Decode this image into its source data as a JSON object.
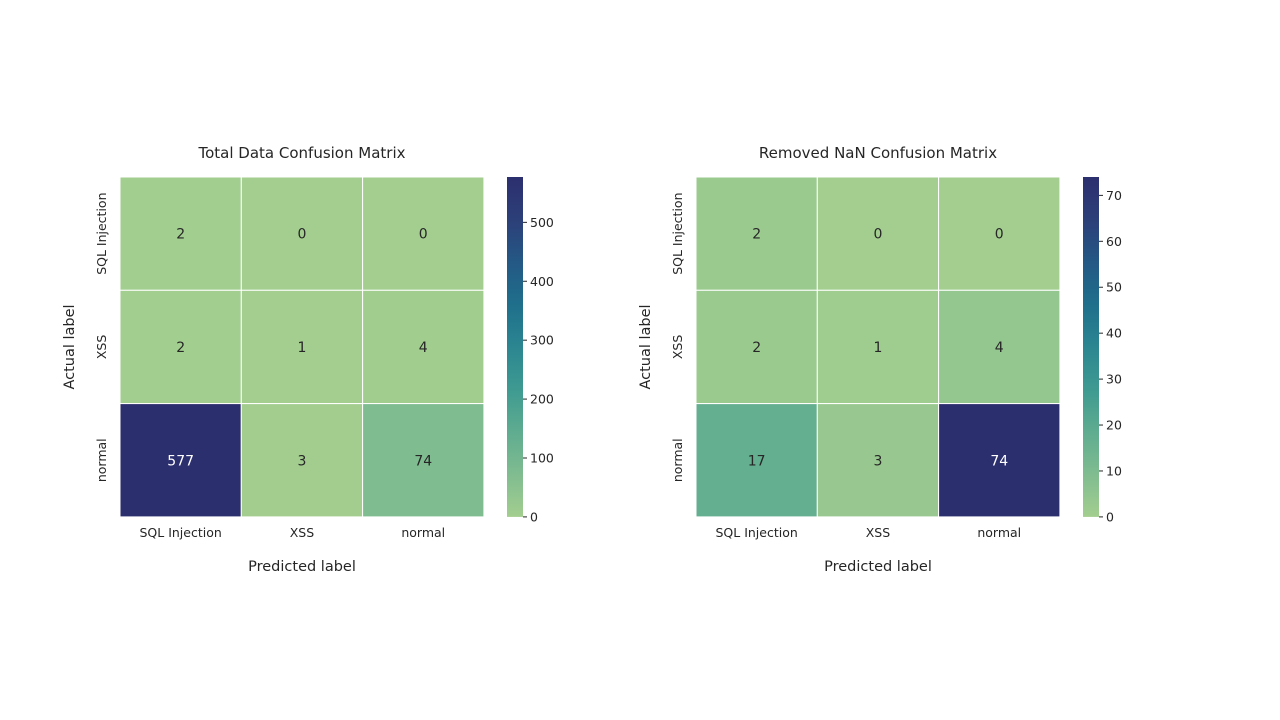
{
  "chart_data": [
    {
      "type": "heatmap",
      "title": "Total Data Confusion Matrix",
      "xlabel": "Predicted label",
      "ylabel": "Actual label",
      "x_categories": [
        "SQL Injection",
        "XSS",
        "normal"
      ],
      "y_categories": [
        "SQL Injection",
        "XSS",
        "normal"
      ],
      "values": [
        [
          2,
          0,
          0
        ],
        [
          2,
          1,
          4
        ],
        [
          577,
          3,
          74
        ]
      ],
      "colorbar": {
        "min": 0,
        "max": 577,
        "ticks": [
          0,
          100,
          200,
          300,
          400,
          500
        ]
      },
      "colormap": [
        "#a3ce8f",
        "#80bc90",
        "#5fac90",
        "#3e9a91",
        "#2b8691",
        "#1f6f8b",
        "#245885",
        "#2c3f78",
        "#2c2f6e"
      ]
    },
    {
      "type": "heatmap",
      "title": "Removed NaN Confusion Matrix",
      "xlabel": "Predicted label",
      "ylabel": "Actual label",
      "x_categories": [
        "SQL Injection",
        "XSS",
        "normal"
      ],
      "y_categories": [
        "SQL Injection",
        "XSS",
        "normal"
      ],
      "values": [
        [
          2,
          0,
          0
        ],
        [
          2,
          1,
          4
        ],
        [
          17,
          3,
          74
        ]
      ],
      "colorbar": {
        "min": 0,
        "max": 74,
        "ticks": [
          0,
          10,
          20,
          30,
          40,
          50,
          60,
          70
        ]
      },
      "colormap": [
        "#a3ce8f",
        "#80bc90",
        "#5fac90",
        "#3e9a91",
        "#2b8691",
        "#1f6f8b",
        "#245885",
        "#2c3f78",
        "#2c2f6e"
      ]
    }
  ]
}
